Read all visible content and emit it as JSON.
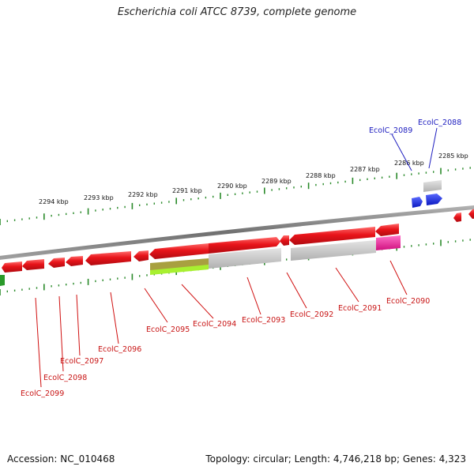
{
  "title": "Escherichia coli ATCC 8739, complete genome",
  "footer": {
    "accession": "Accession: NC_010468",
    "summary": "Topology: circular; Length: 4,746,218 bp; Genes: 4,323"
  },
  "colors": {
    "forward_gene": "#e8141a",
    "reverse_gene_label": "#c8141a",
    "forward_label": "#2020c0",
    "blue_gene": "#1a2ee0",
    "tick": "#2a8a2a",
    "backbone": "#808080",
    "gray_feature": "#c0c0c0",
    "magenta_feature": "#e0209a",
    "olive_feature": "#a8a040",
    "lime_feature": "#a8f030",
    "green_feature": "#2a9a2a"
  },
  "kbp_labels": [
    "2285 kbp",
    "2286 kbp",
    "2287 kbp",
    "2288 kbp",
    "2289 kbp",
    "2290 kbp",
    "2291 kbp",
    "2292 kbp",
    "2293 kbp",
    "2294 kbp"
  ],
  "gene_labels_top": [
    "EcolC_2089",
    "EcolC_2088"
  ],
  "gene_labels_bottom": [
    "EcolC_2090",
    "EcolC_2091",
    "EcolC_2092",
    "EcolC_2093",
    "EcolC_2094",
    "EcolC_2095",
    "EcolC_2096",
    "EcolC_2097",
    "EcolC_2098",
    "EcolC_2099"
  ]
}
